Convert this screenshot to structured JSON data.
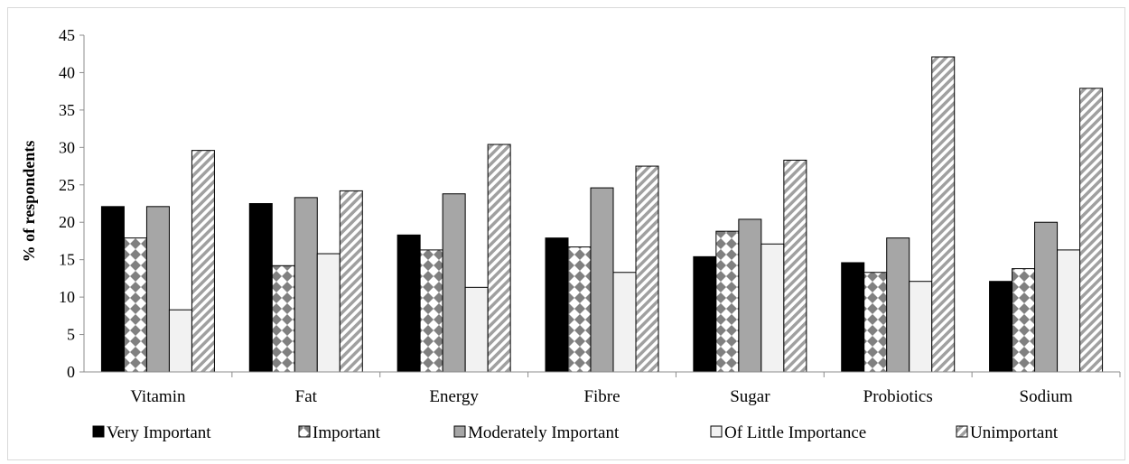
{
  "chart_data": {
    "type": "bar",
    "title": "",
    "xlabel": "",
    "ylabel": "% of respondents",
    "ylim": [
      0,
      45
    ],
    "yticks": [
      0,
      5,
      10,
      15,
      20,
      25,
      30,
      35,
      40,
      45
    ],
    "categories": [
      "Vitamin",
      "Fat",
      "Energy",
      "Fibre",
      "Sugar",
      "Probiotics",
      "Sodium"
    ],
    "series": [
      {
        "name": "Very Important",
        "pattern": "solid-black",
        "values": [
          22.1,
          22.5,
          18.3,
          17.9,
          15.4,
          14.6,
          12.1
        ]
      },
      {
        "name": "Important",
        "pattern": "diamond-checker",
        "values": [
          17.9,
          14.2,
          16.3,
          16.7,
          18.8,
          13.3,
          13.8
        ]
      },
      {
        "name": "Moderately Important",
        "pattern": "solid-gray",
        "values": [
          22.1,
          23.3,
          23.8,
          24.6,
          20.4,
          17.9,
          20.0
        ]
      },
      {
        "name": "Of Little Importance",
        "pattern": "light-gray",
        "values": [
          8.3,
          15.8,
          11.3,
          13.3,
          17.1,
          12.1,
          16.3
        ]
      },
      {
        "name": "Unimportant",
        "pattern": "diagonal-stripes",
        "values": [
          29.6,
          24.2,
          30.4,
          27.5,
          28.3,
          42.1,
          37.9
        ]
      }
    ],
    "grid": false,
    "legend_position": "bottom",
    "colors": {
      "very_important": "#000000",
      "important_a": "#ffffff",
      "important_b": "#808080",
      "moderately_important": "#a6a6a6",
      "of_little_importance": "#f2f2f2",
      "unimportant_a": "#ffffff",
      "unimportant_b": "#a0a0a0"
    }
  }
}
